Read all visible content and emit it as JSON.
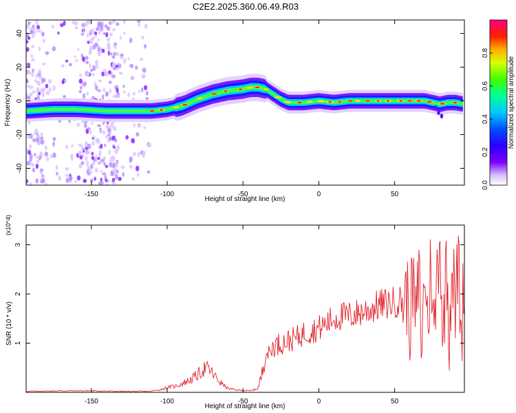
{
  "title": "C2E2.2025.360.06.49.R03",
  "colors": {
    "snr_line": "#e0202a",
    "axis": "#000000"
  },
  "chart_data": [
    {
      "type": "heatmap",
      "xlabel": "Height of straight line (km)",
      "ylabel": "Frequency (Hz)",
      "xlim": [
        -193,
        96
      ],
      "ylim": [
        -50,
        48
      ],
      "xticks": [
        -150,
        -100,
        -50,
        0,
        50
      ],
      "yticks": [
        -40,
        -20,
        0,
        20,
        40
      ],
      "colorbar": {
        "label": "Normalized spectral amplitude",
        "range": [
          0.0,
          1.0
        ],
        "ticks": [
          "0.0",
          "0.2",
          "0.4",
          "0.6",
          "0.8"
        ],
        "colormap": [
          "#ffffff",
          "#7a00ff",
          "#0000ff",
          "#00c8ff",
          "#00ff80",
          "#90ff00",
          "#ffff00",
          "#ff8000",
          "#ff0000",
          "#ff0080"
        ]
      },
      "ridge": {
        "x": [
          -193,
          -175,
          -160,
          -140,
          -120,
          -110,
          -100,
          -90,
          -80,
          -70,
          -60,
          -50,
          -45,
          -40,
          -35,
          -30,
          -25,
          -20,
          -10,
          0,
          10,
          20,
          30,
          40,
          50,
          60,
          70,
          75,
          80,
          85,
          90,
          96
        ],
        "freq": [
          -6,
          -5,
          -5,
          -6,
          -6,
          -6,
          -5,
          -3,
          1,
          4,
          6,
          7,
          8,
          8,
          7,
          4,
          1,
          -1,
          -1,
          0,
          -1,
          0,
          0,
          0,
          0,
          0,
          0,
          -1,
          -2,
          -1,
          -1,
          -2
        ]
      },
      "scatter_region_km": [
        -193,
        -111
      ]
    },
    {
      "type": "line",
      "xlabel": "Height of straight line (km)",
      "ylabel": "SNR (10 * v/v)",
      "y_multiplier": "(x10^4)",
      "xlim": [
        -193,
        96
      ],
      "ylim": [
        0,
        3.4
      ],
      "xticks": [
        -150,
        -100,
        -50,
        0,
        50
      ],
      "yticks": [
        1,
        2,
        3
      ],
      "series": [
        {
          "x": [
            -193,
            -170,
            -150,
            -130,
            -112,
            -105,
            -100,
            -95,
            -90,
            -85,
            -80,
            -75,
            -72,
            -70,
            -65,
            -60,
            -55,
            -50,
            -45,
            -40,
            -38,
            -36,
            -35,
            -33,
            -30,
            -25,
            -20,
            -15,
            -10,
            -5,
            0,
            5,
            10,
            15,
            20,
            25,
            30,
            35,
            40,
            45,
            50,
            52,
            55,
            58,
            60,
            62,
            64,
            66,
            68,
            70,
            72,
            74,
            76,
            78,
            80,
            82,
            84,
            86,
            88,
            90,
            92,
            94,
            96
          ],
          "values": [
            0.02,
            0.03,
            0.03,
            0.02,
            0.02,
            0.05,
            0.1,
            0.12,
            0.18,
            0.25,
            0.35,
            0.5,
            0.45,
            0.38,
            0.2,
            0.08,
            0.05,
            0.04,
            0.03,
            0.08,
            0.3,
            0.6,
            0.9,
            0.75,
            0.95,
            1.0,
            1.05,
            1.1,
            1.2,
            1.25,
            1.3,
            1.4,
            1.5,
            1.55,
            1.55,
            1.6,
            1.65,
            1.7,
            1.78,
            1.8,
            1.84,
            1.86,
            1.85,
            2.0,
            1.5,
            2.2,
            1.4,
            2.4,
            0.9,
            2.6,
            1.2,
            2.8,
            1.0,
            2.5,
            3.2,
            0.8,
            2.9,
            1.3,
            2.7,
            1.6,
            2.8,
            1.1,
            2.6
          ]
        }
      ]
    }
  ]
}
